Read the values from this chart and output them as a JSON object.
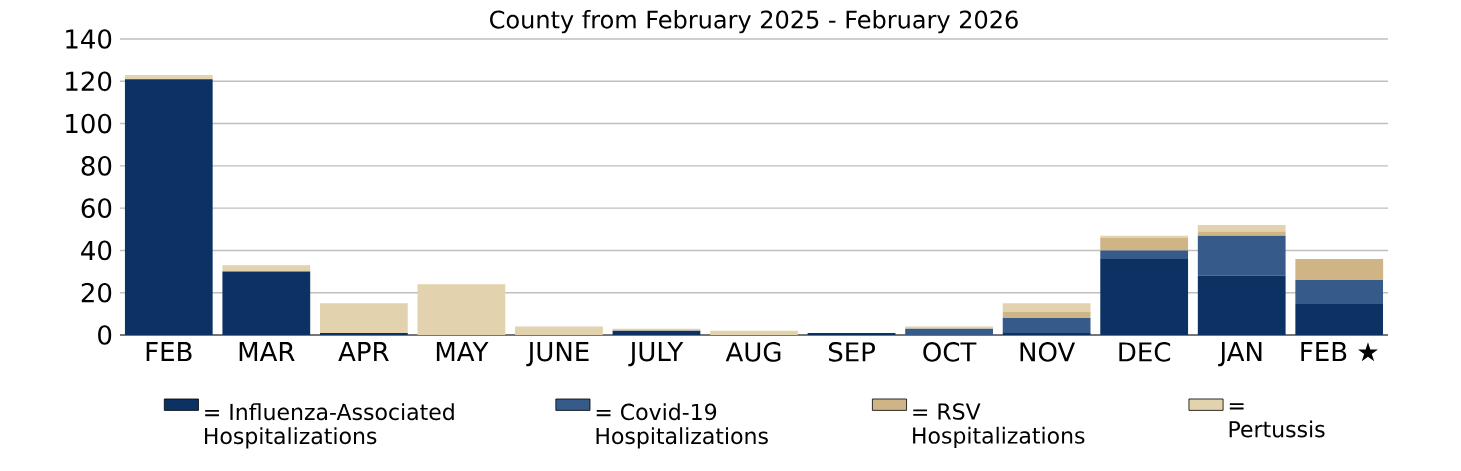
{
  "chart_data": {
    "type": "bar",
    "title": "County from February 2025 - February 2026",
    "stacked": true,
    "categories": [
      "FEB",
      "MAR",
      "APR",
      "MAY",
      "JUNE",
      "JULY",
      "AUG",
      "SEP",
      "OCT",
      "NOV",
      "DEC",
      "JAN",
      "FEB ★"
    ],
    "series": [
      {
        "name": "= Influenza-Associated Hospitalizations",
        "color": "#0c3264",
        "values": [
          121,
          30,
          1,
          0,
          0,
          2,
          0,
          1,
          0,
          1,
          36,
          28,
          15
        ]
      },
      {
        "name": "= Covid-19 Hospitalizations",
        "color": "#365b8a",
        "values": [
          0,
          0,
          0,
          0,
          0,
          0,
          0,
          0,
          3,
          7,
          4,
          19,
          11
        ]
      },
      {
        "name": "= RSV Hospitalizations",
        "color": "#cfb485",
        "values": [
          0,
          0,
          0,
          0,
          0,
          0,
          0,
          0,
          0,
          3,
          6,
          2,
          10
        ]
      },
      {
        "name": "= Pertussis",
        "color": "#e2d2ad",
        "values": [
          2,
          3,
          14,
          24,
          4,
          1,
          2,
          0,
          1,
          4,
          1,
          3,
          0
        ]
      }
    ],
    "ylim": [
      0,
      140
    ],
    "yticks": [
      0,
      20,
      40,
      60,
      80,
      100,
      120,
      140
    ],
    "grid": "y",
    "legend": "bottom"
  }
}
